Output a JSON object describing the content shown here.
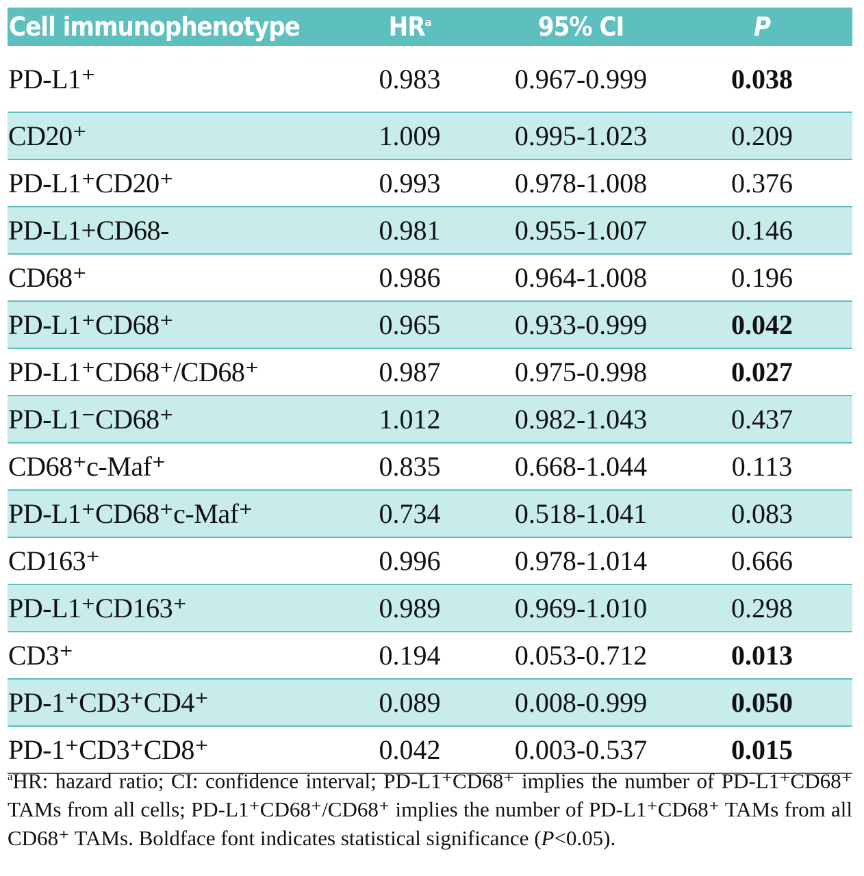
{
  "table": {
    "headers": {
      "cell": "Cell immunophenotype",
      "hr": "HR",
      "hr_sup": "a",
      "ci": "95% CI",
      "p": "P"
    },
    "rows": [
      {
        "name": "PD-L1⁺",
        "hr": "0.983",
        "ci": "0.967-0.999",
        "p": "0.038",
        "significant": true
      },
      {
        "name": "CD20⁺",
        "hr": "1.009",
        "ci": "0.995-1.023",
        "p": "0.209",
        "significant": false
      },
      {
        "name": "PD-L1⁺CD20⁺",
        "hr": "0.993",
        "ci": "0.978-1.008",
        "p": "0.376",
        "significant": false
      },
      {
        "name": "PD-L1+CD68-",
        "hr": "0.981",
        "ci": "0.955-1.007",
        "p": "0.146",
        "significant": false
      },
      {
        "name": "CD68⁺",
        "hr": "0.986",
        "ci": "0.964-1.008",
        "p": "0.196",
        "significant": false
      },
      {
        "name": "PD-L1⁺CD68⁺",
        "hr": "0.965",
        "ci": "0.933-0.999",
        "p": "0.042",
        "significant": true
      },
      {
        "name": "PD-L1⁺CD68⁺/CD68⁺",
        "hr": "0.987",
        "ci": "0.975-0.998",
        "p": "0.027",
        "significant": true
      },
      {
        "name": "PD-L1⁻CD68⁺",
        "hr": "1.012",
        "ci": "0.982-1.043",
        "p": "0.437",
        "significant": false
      },
      {
        "name": "CD68⁺c-Maf⁺",
        "hr": "0.835",
        "ci": "0.668-1.044",
        "p": "0.113",
        "significant": false
      },
      {
        "name": "PD-L1⁺CD68⁺c-Maf⁺",
        "hr": "0.734",
        "ci": "0.518-1.041",
        "p": "0.083",
        "significant": false
      },
      {
        "name": "CD163⁺",
        "hr": "0.996",
        "ci": "0.978-1.014",
        "p": "0.666",
        "significant": false
      },
      {
        "name": "PD-L1⁺CD163⁺",
        "hr": "0.989",
        "ci": "0.969-1.010",
        "p": "0.298",
        "significant": false
      },
      {
        "name": "CD3⁺",
        "hr": "0.194",
        "ci": "0.053-0.712",
        "p": "0.013",
        "significant": true
      },
      {
        "name": "PD-1⁺CD3⁺CD4⁺",
        "hr": "0.089",
        "ci": "0.008-0.999",
        "p": "0.050",
        "significant": true
      },
      {
        "name": "PD-1⁺CD3⁺CD8⁺",
        "hr": "0.042",
        "ci": "0.003-0.537",
        "p": "0.015",
        "significant": true
      }
    ]
  },
  "footnote": {
    "marker": "a",
    "text_1": "HR: hazard ratio; CI: confidence interval; PD-L1⁺CD68⁺ implies the number of PD-L1⁺CD68⁺ TAMs from all cells; PD-L1⁺CD68⁺/CD68⁺ implies the number of PD-L1⁺CD68⁺ TAMs from all CD68⁺ TAMs. Boldface font indicates statistical significance (",
    "p_symbol": "P",
    "text_2": "<0.05)."
  },
  "colors": {
    "header_bg": "#5ebfbf",
    "stripe_bg": "#c8ebec",
    "rule": "#5ebfbf"
  }
}
